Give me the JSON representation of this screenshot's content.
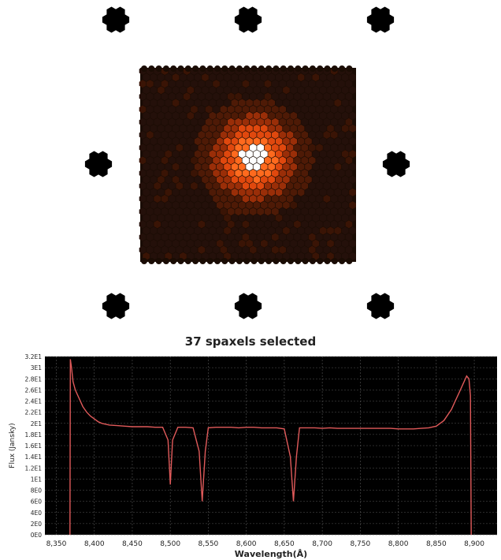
{
  "chart_data": {
    "type": "line",
    "title": "37 spaxels selected",
    "xlabel": "Wavelength(Å)",
    "ylabel": "Flux (Jansky)",
    "xlim": [
      8335,
      8930
    ],
    "ylim": [
      0,
      32
    ],
    "x_ticks": [
      "8,350",
      "8,400",
      "8,450",
      "8,500",
      "8,550",
      "8,600",
      "8,650",
      "8,700",
      "8,750",
      "8,800",
      "8,850",
      "8,900"
    ],
    "y_ticks": [
      "0E0",
      "2E0",
      "4E0",
      "6E0",
      "8E0",
      "1E1",
      "1.2E1",
      "1.4E1",
      "1.6E1",
      "1.8E1",
      "2E1",
      "2.2E1",
      "2.4E1",
      "2.6E1",
      "2.8E1",
      "3E1",
      "3.2E1"
    ],
    "grid": true,
    "background": "#000000",
    "line_color": "#e05a5a",
    "series": [
      {
        "x": [
          8368,
          8368.5,
          8370,
          8372,
          8375,
          8380,
          8385,
          8390,
          8395,
          8400,
          8405,
          8410,
          8420,
          8430,
          8440,
          8450,
          8460,
          8470,
          8480,
          8490,
          8497,
          8500,
          8503,
          8510,
          8520,
          8530,
          8538,
          8542,
          8546,
          8550,
          8560,
          8570,
          8580,
          8590,
          8600,
          8610,
          8620,
          8630,
          8640,
          8650,
          8658,
          8662,
          8666,
          8670,
          8680,
          8690,
          8700,
          8710,
          8720,
          8730,
          8740,
          8750,
          8760,
          8770,
          8780,
          8790,
          8800,
          8810,
          8820,
          8830,
          8840,
          8850,
          8860,
          8865,
          8870,
          8875,
          8880,
          8885,
          8890,
          8893,
          8895,
          8896
        ],
        "y": [
          0,
          31.5,
          30,
          27.5,
          26,
          24.5,
          23,
          22,
          21.3,
          20.8,
          20.3,
          20,
          19.7,
          19.6,
          19.5,
          19.4,
          19.4,
          19.4,
          19.3,
          19.3,
          17,
          9,
          17,
          19.3,
          19.3,
          19.2,
          15,
          6,
          15,
          19.2,
          19.3,
          19.3,
          19.3,
          19.2,
          19.3,
          19.3,
          19.2,
          19.2,
          19.2,
          19,
          14,
          6,
          14,
          19.2,
          19.2,
          19.2,
          19.1,
          19.2,
          19.1,
          19.1,
          19.1,
          19.1,
          19.1,
          19.1,
          19.1,
          19.1,
          19,
          19,
          19,
          19.1,
          19.2,
          19.5,
          20.5,
          21.5,
          22.5,
          24,
          25.5,
          27,
          28.5,
          28,
          25,
          0
        ]
      }
    ],
    "ifu_note": "37 spaxels highlighted at the bundle centre (heat-colour IFU map)"
  }
}
